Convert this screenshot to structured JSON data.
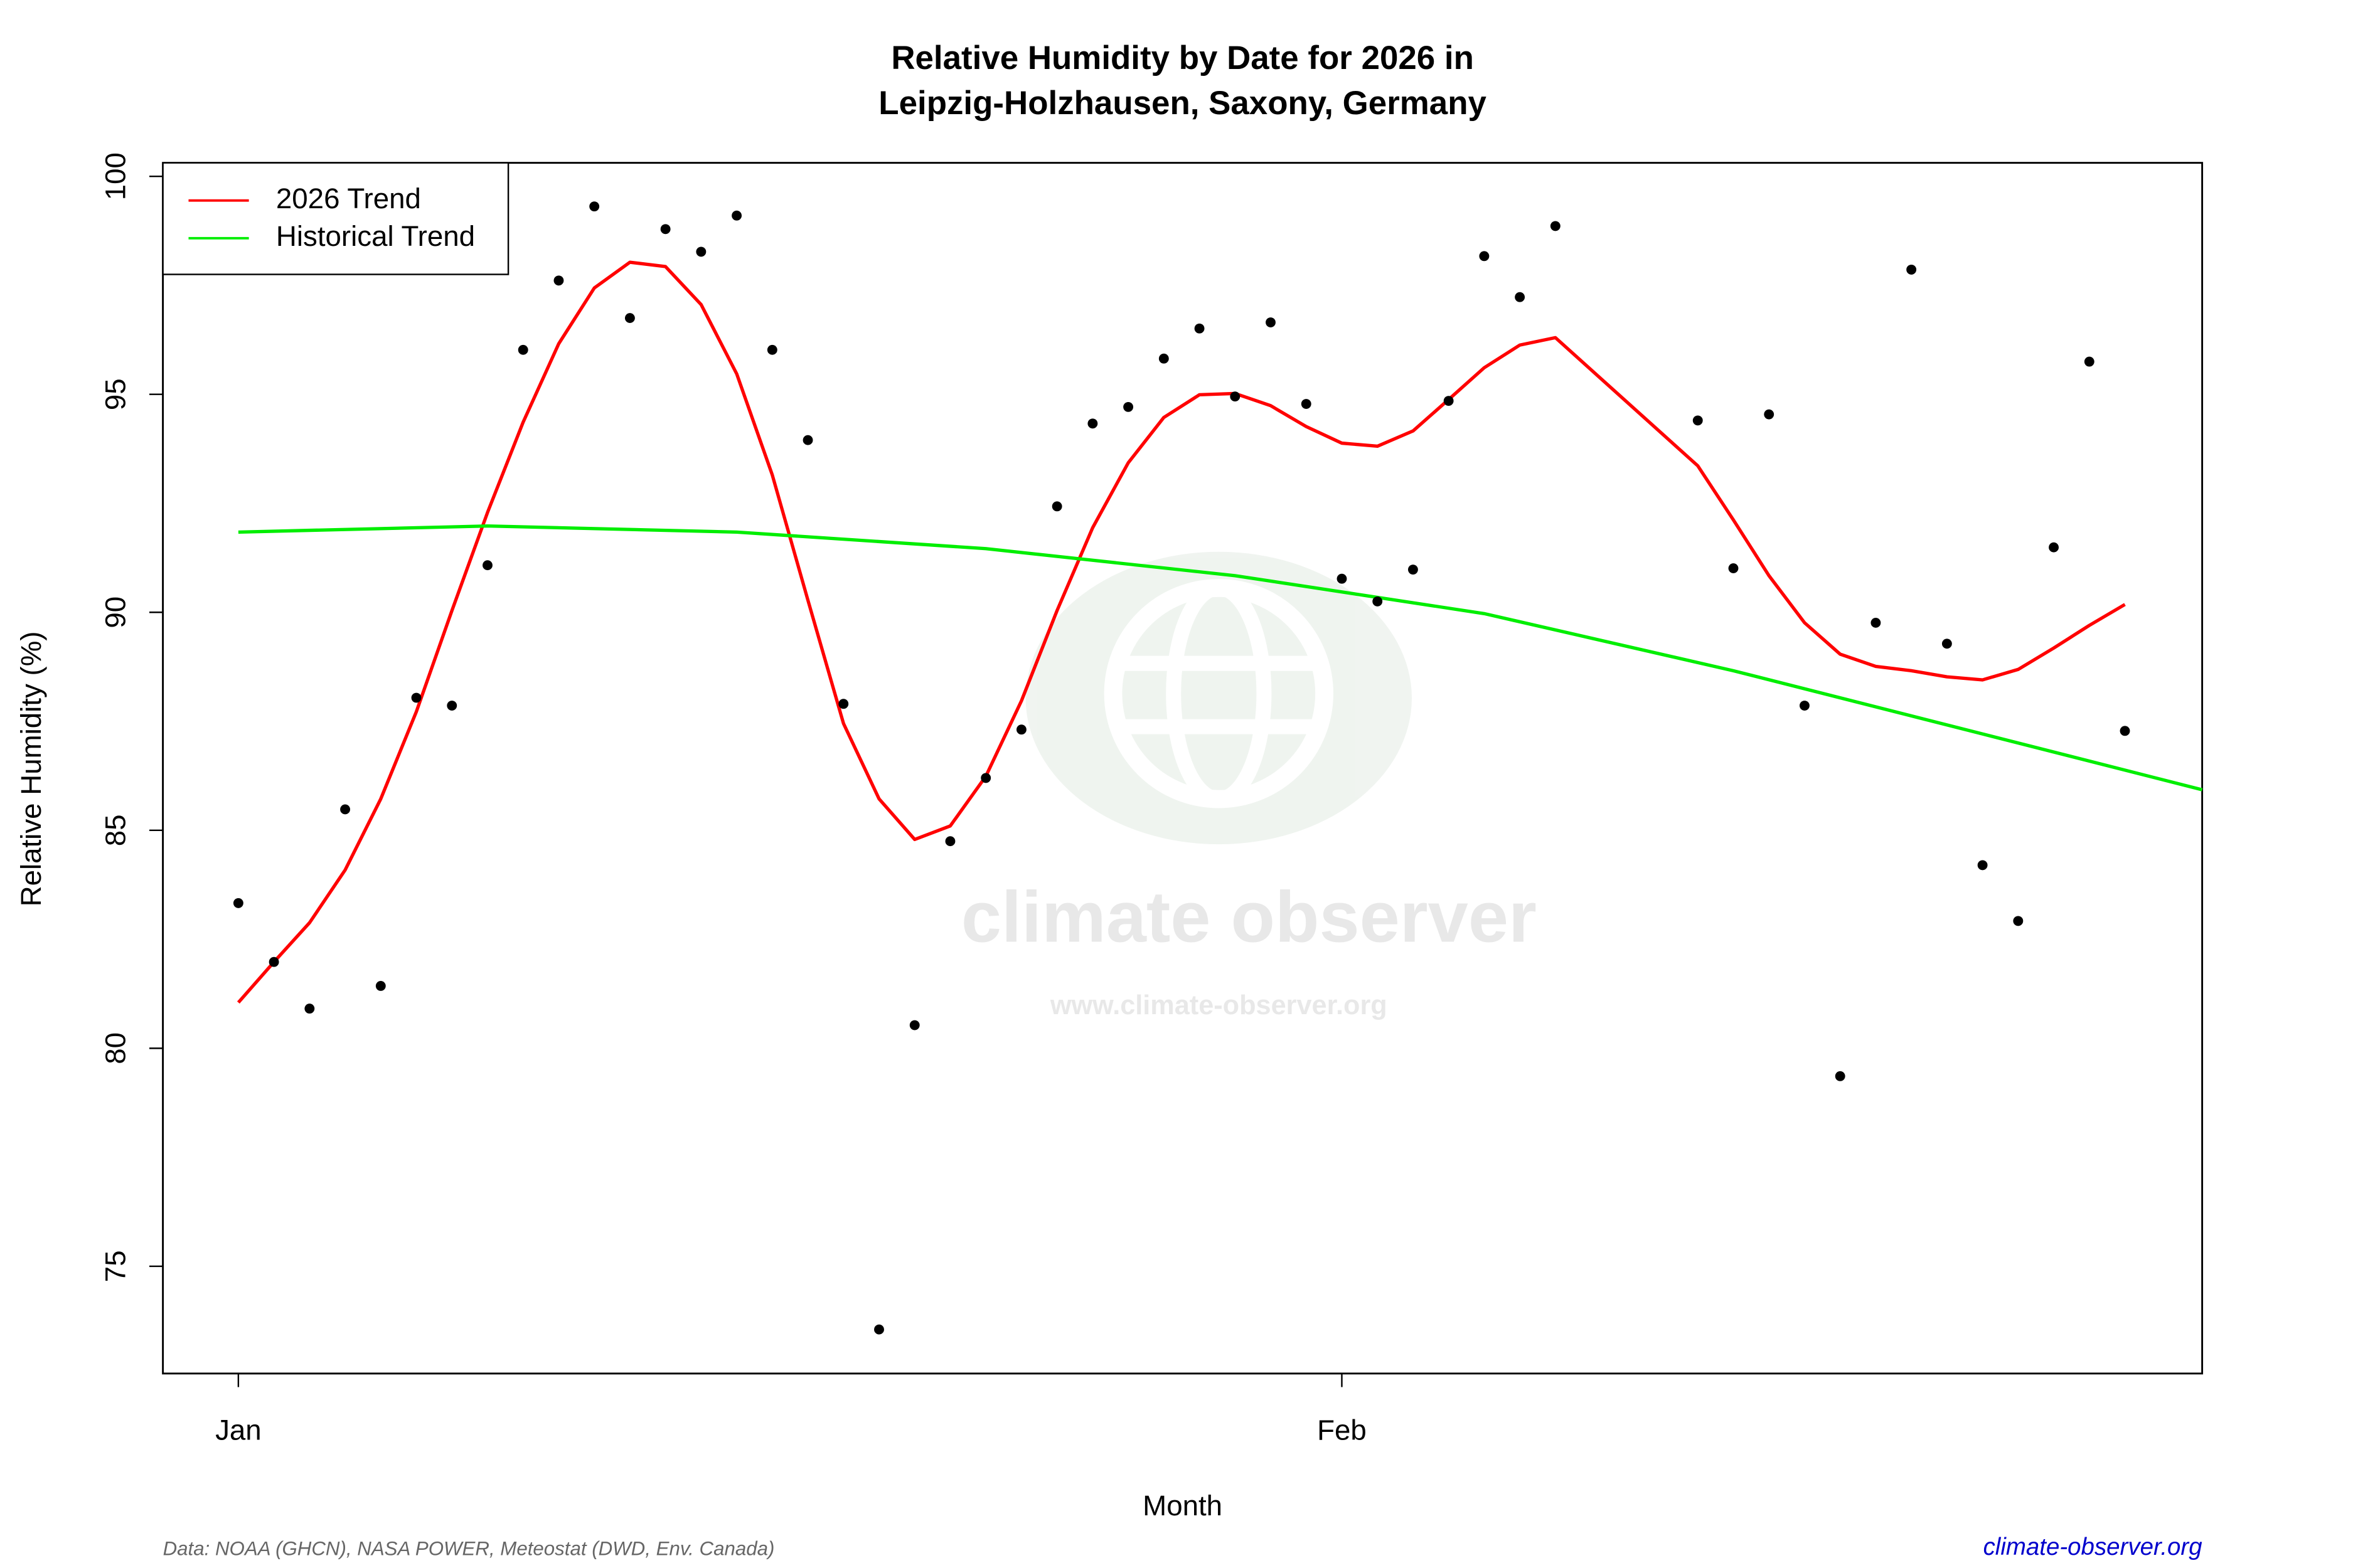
{
  "chart_data": {
    "type": "line",
    "title": [
      "Relative Humidity by Date for 2026 in",
      "Leipzig-Holzhausen, Saxony, Germany"
    ],
    "x_label": "Month",
    "y_label": "Relative Humidity (%)",
    "source": "Data: NOAA (GHCN), NASA POWER, Meteostat (DWD, Env. Canada)",
    "site": "climate-observer.org",
    "watermark": {
      "name": "climate observer",
      "url": "www.climate-observer.org"
    },
    "xlim": [
      -1.12,
      56.17
    ],
    "xticks": [
      {
        "value": 1,
        "label": "Jan"
      },
      {
        "value": 32,
        "label": "Feb"
      }
    ],
    "ylim": [
      72.54,
      100.31
    ],
    "yticks": [
      75,
      80,
      85,
      90,
      95,
      100
    ],
    "legend": "top-left",
    "points": {
      "color": "#000000",
      "x": [
        1,
        2,
        3,
        4,
        5,
        6,
        7,
        8,
        9,
        10,
        11,
        12,
        13,
        14,
        15,
        16,
        17,
        18,
        19,
        20,
        21,
        22,
        23,
        24,
        25,
        26,
        27,
        28,
        29,
        30,
        31,
        32,
        33,
        34,
        35,
        36,
        37,
        38,
        42,
        43,
        44,
        45,
        46,
        47,
        48,
        49,
        50,
        51,
        52,
        53,
        54
      ],
      "values": [
        83.33,
        81.98,
        80.91,
        85.48,
        81.43,
        88.04,
        87.86,
        91.08,
        96.02,
        97.61,
        99.31,
        96.75,
        98.79,
        98.27,
        99.1,
        96.02,
        93.95,
        87.9,
        73.55,
        80.53,
        84.75,
        86.2,
        87.31,
        92.43,
        94.33,
        94.71,
        95.82,
        96.51,
        94.95,
        96.65,
        94.78,
        90.77,
        90.25,
        90.98,
        94.85,
        98.17,
        97.23,
        98.86,
        94.4,
        91.01,
        94.54,
        87.86,
        79.36,
        89.76,
        97.86,
        89.28,
        84.2,
        82.92,
        91.49,
        95.75,
        87.28
      ]
    },
    "series": [
      {
        "name": "2026 Trend",
        "color": "#ff0000",
        "x": [
          1,
          2,
          3,
          4,
          5,
          6,
          7,
          8,
          9,
          10,
          11,
          12,
          13,
          14,
          15,
          16,
          17,
          18,
          19,
          20,
          21,
          22,
          23,
          24,
          25,
          26,
          27,
          28,
          29,
          30,
          31,
          32,
          33,
          34,
          35,
          36,
          37,
          38,
          42,
          43,
          44,
          45,
          46,
          47,
          48,
          49,
          50,
          51,
          52,
          53,
          54
        ],
        "values": [
          81.05,
          81.98,
          82.88,
          84.09,
          85.72,
          87.72,
          90.04,
          92.29,
          94.36,
          96.16,
          97.44,
          98.03,
          97.93,
          97.06,
          95.47,
          93.15,
          90.28,
          87.45,
          85.72,
          84.79,
          85.1,
          86.24,
          87.97,
          90.04,
          91.94,
          93.43,
          94.47,
          94.99,
          95.02,
          94.74,
          94.26,
          93.88,
          93.81,
          94.16,
          94.88,
          95.61,
          96.13,
          96.3,
          93.36,
          92.12,
          90.84,
          89.76,
          89.04,
          88.76,
          88.66,
          88.52,
          88.45,
          88.69,
          89.18,
          89.7,
          90.18
        ]
      },
      {
        "name": "Historical Trend",
        "color": "#00ee00",
        "x": [
          1,
          8,
          15,
          22,
          29,
          36,
          43,
          50,
          56.17
        ],
        "values": [
          91.84,
          91.98,
          91.84,
          91.46,
          90.84,
          89.97,
          88.66,
          87.21,
          85.93
        ]
      }
    ]
  }
}
